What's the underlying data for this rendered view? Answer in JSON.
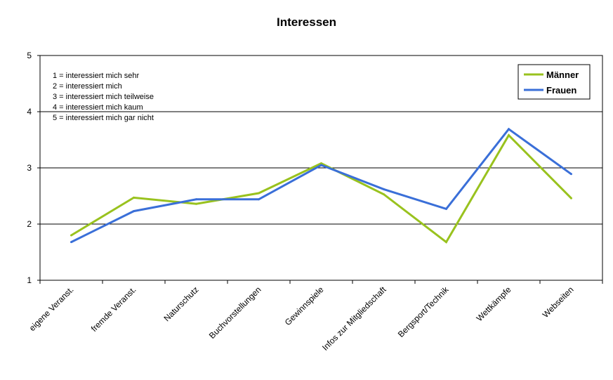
{
  "chart_data": {
    "type": "line",
    "title": "Interessen",
    "categories": [
      "eigene Veranst.",
      "fremde Veranst.",
      "Naturschutz",
      "Buchvorstellungen",
      "Gewinnspiele",
      "Infos zur Mitgliedschaft",
      "Bergsport/Technik",
      "Wettkämpfe",
      "Webseiten"
    ],
    "series": [
      {
        "name": "Männer",
        "color": "#99C21E",
        "values": [
          1.8,
          2.47,
          2.36,
          2.55,
          3.08,
          2.53,
          1.68,
          3.58,
          2.46
        ]
      },
      {
        "name": "Frauen",
        "color": "#3A6FD8",
        "values": [
          1.68,
          2.23,
          2.44,
          2.44,
          3.05,
          2.62,
          2.27,
          3.69,
          2.89
        ]
      }
    ],
    "ylim": [
      1,
      5
    ],
    "yticks": [
      "1",
      "2",
      "3",
      "4",
      "5"
    ],
    "grid": true,
    "legend_position": "top-right",
    "annotation_lines": [
      "1 = interessiert mich sehr",
      "2 = interessiert mich",
      "3 = interessiert mich teilweise",
      "4 = interessiert mich kaum",
      "5 = interessiert mich gar nicht"
    ]
  }
}
